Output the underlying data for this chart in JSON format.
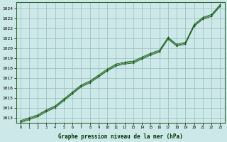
{
  "hours": [
    0,
    1,
    2,
    3,
    4,
    5,
    6,
    7,
    8,
    9,
    10,
    11,
    12,
    13,
    14,
    15,
    16,
    17,
    18,
    19,
    20,
    21,
    22,
    23
  ],
  "pressure_main": [
    1012.6,
    1012.9,
    1013.2,
    1013.7,
    1014.1,
    1014.8,
    1015.5,
    1016.2,
    1016.6,
    1017.2,
    1017.8,
    1018.3,
    1018.5,
    1018.6,
    1019.0,
    1019.4,
    1019.7,
    1021.0,
    1020.3,
    1020.5,
    1022.3,
    1023.0,
    1023.3,
    1024.3
  ],
  "pressure_min": [
    1012.5,
    1012.8,
    1013.1,
    1013.6,
    1014.0,
    1014.7,
    1015.4,
    1016.1,
    1016.5,
    1017.1,
    1017.7,
    1018.2,
    1018.4,
    1018.5,
    1018.9,
    1019.3,
    1019.6,
    1020.9,
    1020.2,
    1020.4,
    1022.2,
    1022.9,
    1023.2,
    1024.2
  ],
  "pressure_max": [
    1012.7,
    1013.0,
    1013.3,
    1013.8,
    1014.2,
    1014.9,
    1015.6,
    1016.3,
    1016.7,
    1017.3,
    1017.9,
    1018.4,
    1018.6,
    1018.7,
    1019.1,
    1019.5,
    1019.8,
    1021.1,
    1020.4,
    1020.6,
    1022.4,
    1023.1,
    1023.4,
    1024.4
  ],
  "ylim_min": 1012.5,
  "ylim_max": 1024.6,
  "xlim_min": -0.5,
  "xlim_max": 23.5,
  "bg_color": "#cce8e8",
  "grid_color": "#99bbbb",
  "line_color": "#1a5c1a",
  "xlabel": "Graphe pression niveau de la mer (hPa)",
  "xlabel_color": "#003300",
  "ytick_labels": [
    "1013",
    "1014",
    "1015",
    "1016",
    "1017",
    "1018",
    "1019",
    "1020",
    "1021",
    "1022",
    "1023",
    "1024"
  ],
  "ytick_values": [
    1013,
    1014,
    1015,
    1016,
    1017,
    1018,
    1019,
    1020,
    1021,
    1022,
    1023,
    1024
  ],
  "xtick_labels": [
    "0",
    "1",
    "2",
    "3",
    "4",
    "5",
    "6",
    "7",
    "8",
    "9",
    "10",
    "11",
    "12",
    "13",
    "14",
    "15",
    "16",
    "17",
    "18",
    "19",
    "20",
    "21",
    "22",
    "23"
  ],
  "xtick_values": [
    0,
    1,
    2,
    3,
    4,
    5,
    6,
    7,
    8,
    9,
    10,
    11,
    12,
    13,
    14,
    15,
    16,
    17,
    18,
    19,
    20,
    21,
    22,
    23
  ]
}
